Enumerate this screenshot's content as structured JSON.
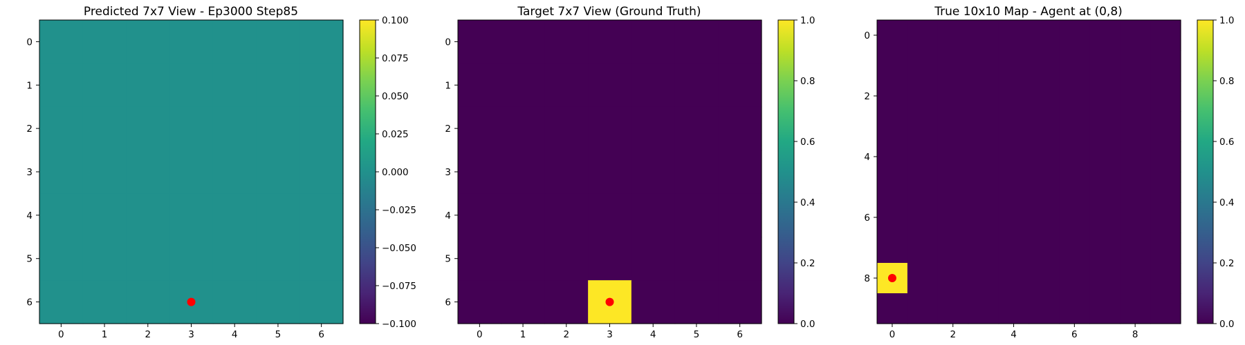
{
  "figure": {
    "background": "#ffffff",
    "agent_marker_color": "#ff0000"
  },
  "chart_data": [
    {
      "type": "heatmap",
      "title": "Predicted 7x7 View - Ep3000 Step85",
      "colormap": "viridis",
      "grid": false,
      "rows": 7,
      "cols": 7,
      "values": [
        [
          0,
          0,
          0,
          0,
          0,
          0,
          0
        ],
        [
          0,
          0,
          0,
          0,
          0,
          0,
          0
        ],
        [
          0,
          0,
          0,
          0,
          0,
          0,
          0
        ],
        [
          0,
          0,
          0,
          0,
          0,
          0,
          0
        ],
        [
          0,
          0,
          0,
          0,
          0,
          0,
          0
        ],
        [
          0,
          0,
          0,
          0,
          0,
          0,
          0
        ],
        [
          0,
          0,
          0,
          0,
          0,
          0,
          0
        ]
      ],
      "vmin": -0.1,
      "vmax": 0.1,
      "x_ticks": [
        0,
        1,
        2,
        3,
        4,
        5,
        6
      ],
      "y_ticks": [
        0,
        1,
        2,
        3,
        4,
        5,
        6
      ],
      "colorbar_ticks": [
        0.1,
        0.075,
        0.05,
        0.025,
        0,
        -0.025,
        -0.05,
        -0.075,
        -0.1
      ],
      "colorbar_tick_labels": [
        "0.100",
        "0.075",
        "0.050",
        "0.025",
        "0.000",
        "−0.025",
        "−0.050",
        "−0.075",
        "−0.100"
      ],
      "agent_marker": {
        "x": 3,
        "y": 6
      }
    },
    {
      "type": "heatmap",
      "title": "Target 7x7 View (Ground Truth)",
      "colormap": "viridis",
      "grid": false,
      "rows": 7,
      "cols": 7,
      "values": [
        [
          0,
          0,
          0,
          0,
          0,
          0,
          0
        ],
        [
          0,
          0,
          0,
          0,
          0,
          0,
          0
        ],
        [
          0,
          0,
          0,
          0,
          0,
          0,
          0
        ],
        [
          0,
          0,
          0,
          0,
          0,
          0,
          0
        ],
        [
          0,
          0,
          0,
          0,
          0,
          0,
          0
        ],
        [
          0,
          0,
          0,
          0,
          0,
          0,
          0
        ],
        [
          0,
          0,
          0,
          1,
          0,
          0,
          0
        ]
      ],
      "vmin": 0,
      "vmax": 1,
      "x_ticks": [
        0,
        1,
        2,
        3,
        4,
        5,
        6
      ],
      "y_ticks": [
        0,
        1,
        2,
        3,
        4,
        5,
        6
      ],
      "colorbar_ticks": [
        1.0,
        0.8,
        0.6,
        0.4,
        0.2,
        0.0
      ],
      "colorbar_tick_labels": [
        "1.0",
        "0.8",
        "0.6",
        "0.4",
        "0.2",
        "0.0"
      ],
      "agent_marker": {
        "x": 3,
        "y": 6
      }
    },
    {
      "type": "heatmap",
      "title": "True 10x10 Map - Agent at (0,8)",
      "colormap": "viridis",
      "grid": false,
      "rows": 10,
      "cols": 10,
      "values": [
        [
          0,
          0,
          0,
          0,
          0,
          0,
          0,
          0,
          0,
          0
        ],
        [
          0,
          0,
          0,
          0,
          0,
          0,
          0,
          0,
          0,
          0
        ],
        [
          0,
          0,
          0,
          0,
          0,
          0,
          0,
          0,
          0,
          0
        ],
        [
          0,
          0,
          0,
          0,
          0,
          0,
          0,
          0,
          0,
          0
        ],
        [
          0,
          0,
          0,
          0,
          0,
          0,
          0,
          0,
          0,
          0
        ],
        [
          0,
          0,
          0,
          0,
          0,
          0,
          0,
          0,
          0,
          0
        ],
        [
          0,
          0,
          0,
          0,
          0,
          0,
          0,
          0,
          0,
          0
        ],
        [
          0,
          0,
          0,
          0,
          0,
          0,
          0,
          0,
          0,
          0
        ],
        [
          1,
          0,
          0,
          0,
          0,
          0,
          0,
          0,
          0,
          0
        ],
        [
          0,
          0,
          0,
          0,
          0,
          0,
          0,
          0,
          0,
          0
        ]
      ],
      "vmin": 0,
      "vmax": 1,
      "x_ticks": [
        0,
        2,
        4,
        6,
        8
      ],
      "y_ticks": [
        0,
        2,
        4,
        6,
        8
      ],
      "colorbar_ticks": [
        1.0,
        0.8,
        0.6,
        0.4,
        0.2,
        0.0
      ],
      "colorbar_tick_labels": [
        "1.0",
        "0.8",
        "0.6",
        "0.4",
        "0.2",
        "0.0"
      ],
      "agent_marker": {
        "x": 0,
        "y": 8
      }
    }
  ]
}
